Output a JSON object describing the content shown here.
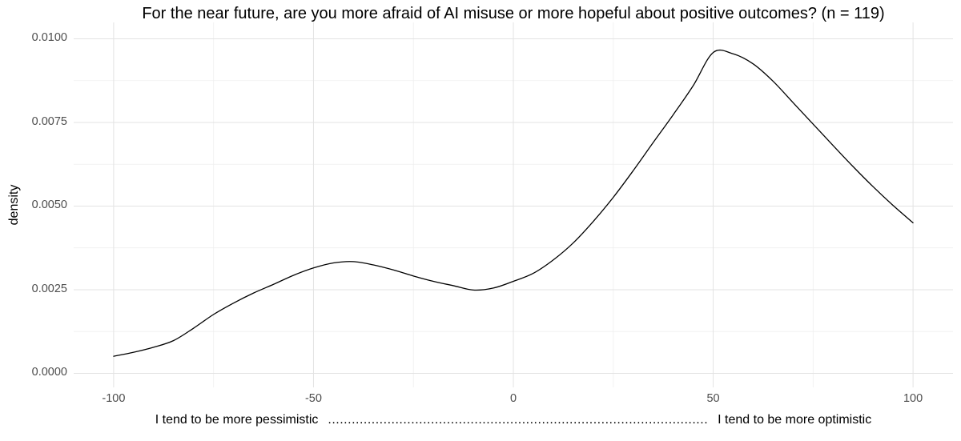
{
  "title": "For the near future, are you more afraid of AI misuse or more hopeful about positive outcomes? (n = 119)",
  "axes": {
    "y_title": "density",
    "x_caption_left": "I tend to be more pessimistic",
    "x_caption_dots": "................................................................................................",
    "x_caption_right": "I tend to be more optimistic"
  },
  "colors": {
    "background": "#ffffff",
    "grid_major": "#e3e3e3",
    "grid_minor": "#efefef",
    "curve": "#000000",
    "tick_label": "#4d4d4d",
    "title": "#000000"
  },
  "chart_data": {
    "type": "line",
    "title": "For the near future, are you more afraid of AI misuse or more hopeful about positive outcomes? (n = 119)",
    "xlabel": "I tend to be more pessimistic  ...  I tend to be more optimistic",
    "ylabel": "density",
    "n": 119,
    "grid": true,
    "legend": false,
    "xlim": [
      -110,
      110
    ],
    "ylim": [
      -0.00042,
      0.01049
    ],
    "x_ticks": [
      -100,
      -50,
      0,
      50,
      100
    ],
    "x_tick_labels": [
      "-100",
      "-50",
      "0",
      "50",
      "100"
    ],
    "x_minor_ticks": [
      -75,
      -25,
      25,
      75
    ],
    "y_ticks": [
      0.0,
      0.0025,
      0.005,
      0.0075,
      0.01
    ],
    "y_tick_labels": [
      "0.0000",
      "0.0025",
      "0.0050",
      "0.0075",
      "0.0100"
    ],
    "y_minor_ticks": [
      0.00125,
      0.00375,
      0.00625,
      0.00875
    ],
    "series": [
      {
        "name": "density",
        "x": [
          -100,
          -95,
          -90,
          -85,
          -80,
          -75,
          -70,
          -65,
          -60,
          -55,
          -50,
          -45,
          -40,
          -35,
          -30,
          -25,
          -20,
          -15,
          -10,
          -5,
          0,
          5,
          10,
          15,
          20,
          25,
          30,
          35,
          40,
          45,
          50,
          55,
          60,
          65,
          70,
          75,
          80,
          85,
          90,
          95,
          100
        ],
        "y": [
          0.00051,
          0.00063,
          0.00078,
          0.00098,
          0.00135,
          0.00176,
          0.0021,
          0.0024,
          0.00266,
          0.00293,
          0.00315,
          0.0033,
          0.00334,
          0.00324,
          0.00309,
          0.00291,
          0.00275,
          0.00262,
          0.00249,
          0.00255,
          0.00275,
          0.00299,
          0.00339,
          0.0039,
          0.00454,
          0.00526,
          0.00606,
          0.0069,
          0.00773,
          0.0086,
          0.00959,
          0.00955,
          0.00925,
          0.00873,
          0.00809,
          0.00745,
          0.00681,
          0.00618,
          0.00558,
          0.00502,
          0.0045
        ]
      }
    ],
    "annotations": {
      "local_max": {
        "x": -42,
        "y": 0.00334
      },
      "local_min": {
        "x": -9,
        "y": 0.00248
      },
      "global_max": {
        "x": 51,
        "y": 0.0096
      },
      "right_end": {
        "x": 100,
        "y": 0.0045
      },
      "left_end": {
        "x": -100,
        "y": 0.0005
      }
    }
  }
}
